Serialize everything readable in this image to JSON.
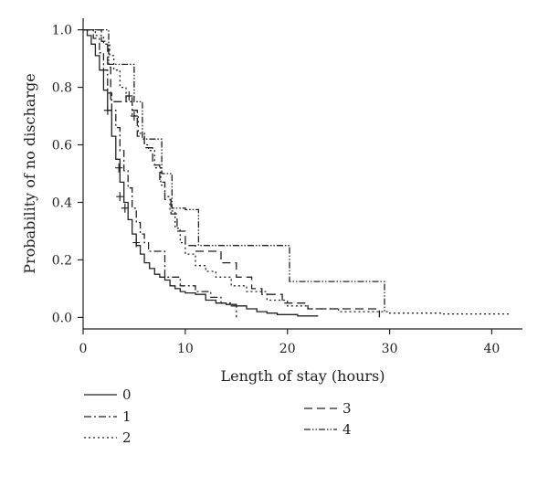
{
  "chart_data": {
    "type": "line",
    "title": "",
    "xlabel": "Length of stay (hours)",
    "ylabel": "Probability of no discharge",
    "xlim": [
      0,
      43
    ],
    "ylim": [
      -0.04,
      1.04
    ],
    "xticks": [
      0,
      10,
      20,
      30,
      40
    ],
    "xtick_labels": [
      "0",
      "10",
      "20",
      "30",
      "40"
    ],
    "yticks": [
      0.0,
      0.2,
      0.4,
      0.6,
      0.8,
      1.0
    ],
    "ytick_labels": [
      "0.0",
      "0.2",
      "0.4",
      "0.6",
      "0.8",
      "1.0"
    ],
    "grid": false,
    "legend_placement": "bottom",
    "series": [
      {
        "name": "0",
        "dash": "",
        "steps": [
          [
            0,
            1.0
          ],
          [
            0.4,
            0.98
          ],
          [
            0.8,
            0.95
          ],
          [
            1.2,
            0.91
          ],
          [
            1.6,
            0.86
          ],
          [
            2.0,
            0.79
          ],
          [
            2.4,
            0.72
          ],
          [
            2.8,
            0.63
          ],
          [
            3.2,
            0.55
          ],
          [
            3.6,
            0.47
          ],
          [
            4.0,
            0.4
          ],
          [
            4.4,
            0.34
          ],
          [
            4.8,
            0.29
          ],
          [
            5.2,
            0.25
          ],
          [
            5.6,
            0.22
          ],
          [
            6.0,
            0.19
          ],
          [
            6.5,
            0.17
          ],
          [
            7.0,
            0.15
          ],
          [
            7.5,
            0.14
          ],
          [
            8.0,
            0.13
          ],
          [
            8.5,
            0.11
          ],
          [
            9.0,
            0.1
          ],
          [
            9.5,
            0.09
          ],
          [
            10.0,
            0.085
          ],
          [
            11.0,
            0.08
          ],
          [
            12.0,
            0.06
          ],
          [
            13.0,
            0.05
          ],
          [
            14.0,
            0.045
          ],
          [
            15.0,
            0.04
          ],
          [
            16.0,
            0.03
          ],
          [
            17.0,
            0.02
          ],
          [
            18.0,
            0.015
          ],
          [
            19.0,
            0.01
          ],
          [
            21.0,
            0.005
          ],
          [
            23.0,
            0.005
          ]
        ],
        "censored": [
          [
            2.4,
            0.72
          ],
          [
            3.6,
            0.42
          ],
          [
            4.1,
            0.38
          ],
          [
            5.2,
            0.26
          ]
        ]
      },
      {
        "name": "1",
        "dash": "8 3 2 3",
        "steps": [
          [
            0,
            1.0
          ],
          [
            1.0,
            0.97
          ],
          [
            1.6,
            0.92
          ],
          [
            2.0,
            0.86
          ],
          [
            2.4,
            0.78
          ],
          [
            2.8,
            0.72
          ],
          [
            3.2,
            0.66
          ],
          [
            3.6,
            0.58
          ],
          [
            4.0,
            0.51
          ],
          [
            4.4,
            0.45
          ],
          [
            4.8,
            0.38
          ],
          [
            5.2,
            0.33
          ],
          [
            5.6,
            0.29
          ],
          [
            6.0,
            0.26
          ],
          [
            6.4,
            0.23
          ],
          [
            8.0,
            0.14
          ],
          [
            9.5,
            0.11
          ],
          [
            11.0,
            0.09
          ],
          [
            12.5,
            0.07
          ],
          [
            13.5,
            0.05
          ],
          [
            14.5,
            0.04
          ],
          [
            15.0,
            0.0
          ]
        ],
        "censored": [
          [
            3.5,
            0.52
          ]
        ]
      },
      {
        "name": "2",
        "dash": "2 3",
        "steps": [
          [
            0,
            1.0
          ],
          [
            1.2,
            0.98
          ],
          [
            2.0,
            0.95
          ],
          [
            2.6,
            0.91
          ],
          [
            3.0,
            0.86
          ],
          [
            3.6,
            0.8
          ],
          [
            4.2,
            0.75
          ],
          [
            4.8,
            0.7
          ],
          [
            5.4,
            0.64
          ],
          [
            6.0,
            0.6
          ],
          [
            6.4,
            0.58
          ],
          [
            7.0,
            0.52
          ],
          [
            7.6,
            0.46
          ],
          [
            8.0,
            0.42
          ],
          [
            8.5,
            0.37
          ],
          [
            9.0,
            0.31
          ],
          [
            9.5,
            0.26
          ],
          [
            10.0,
            0.22
          ],
          [
            11.0,
            0.18
          ],
          [
            12.0,
            0.16
          ],
          [
            13.0,
            0.14
          ],
          [
            14.5,
            0.11
          ],
          [
            16.0,
            0.09
          ],
          [
            18.0,
            0.06
          ],
          [
            20.0,
            0.04
          ],
          [
            22.0,
            0.03
          ],
          [
            25.0,
            0.02
          ],
          [
            30.0,
            0.015
          ],
          [
            35.0,
            0.012
          ],
          [
            41.8,
            0.01
          ]
        ],
        "censored": [
          [
            5.0,
            0.7
          ]
        ]
      },
      {
        "name": "3",
        "dash": "9 5",
        "steps": [
          [
            0,
            1.0
          ],
          [
            1.8,
            0.96
          ],
          [
            2.4,
            0.87
          ],
          [
            2.7,
            0.75
          ],
          [
            4.2,
            0.77
          ],
          [
            4.8,
            0.72
          ],
          [
            5.3,
            0.63
          ],
          [
            6.0,
            0.59
          ],
          [
            6.8,
            0.53
          ],
          [
            7.5,
            0.47
          ],
          [
            8.0,
            0.41
          ],
          [
            8.6,
            0.36
          ],
          [
            9.2,
            0.3
          ],
          [
            10.0,
            0.25
          ],
          [
            11.0,
            0.23
          ],
          [
            13.5,
            0.19
          ],
          [
            15.0,
            0.14
          ],
          [
            16.5,
            0.1
          ],
          [
            17.5,
            0.08
          ],
          [
            19.5,
            0.05
          ],
          [
            22.0,
            0.03
          ],
          [
            29.0,
            0.0
          ]
        ],
        "censored": [
          [
            4.5,
            0.77
          ]
        ]
      },
      {
        "name": "4",
        "dash": "7 2 1.5 2 1.5 2",
        "steps": [
          [
            0,
            1.0
          ],
          [
            2.5,
            0.88
          ],
          [
            5.0,
            0.75
          ],
          [
            5.8,
            0.62
          ],
          [
            7.7,
            0.5
          ],
          [
            8.7,
            0.38
          ],
          [
            10.0,
            0.375
          ],
          [
            11.3,
            0.25
          ],
          [
            20.2,
            0.125
          ],
          [
            29.5,
            0.02
          ]
        ],
        "censored": []
      }
    ]
  }
}
